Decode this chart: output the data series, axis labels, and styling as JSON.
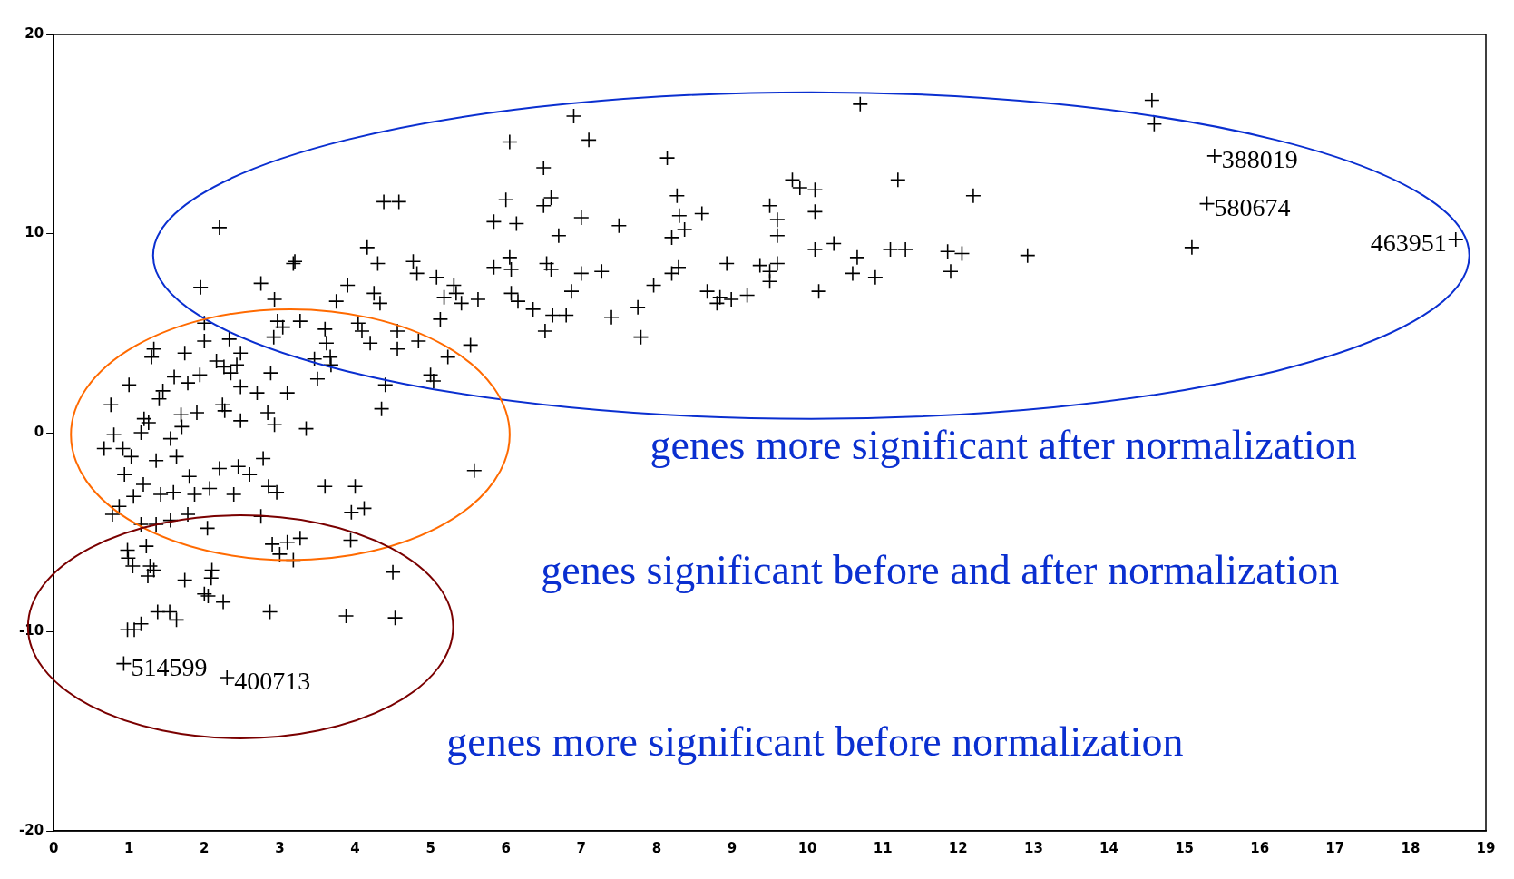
{
  "chart_data": {
    "type": "scatter",
    "color": "#000000",
    "marker": "cross",
    "x": [
      14.57,
      14.6,
      15.4,
      15.3,
      15.1,
      18.6,
      10.7,
      6.9,
      7.1,
      6.05,
      6.5,
      8.14,
      11.2,
      12.2,
      9.8,
      9.9,
      10.1,
      8.27,
      6.0,
      6.6,
      6.5,
      9.5,
      10.1,
      8.6,
      9.6,
      8.3,
      7.0,
      5.84,
      6.14,
      7.5,
      8.37,
      8.2,
      6.7,
      9.6,
      4.38,
      4.58,
      2.2,
      4.16,
      4.3,
      3.2,
      3.18,
      4.77,
      4.82,
      3.9,
      1.95,
      2.75,
      2.93,
      4.25,
      4.33,
      3.75,
      5.08,
      5.31,
      5.34,
      5.18,
      5.13,
      5.53,
      5.41,
      5.63,
      5.84,
      6.05,
      6.07,
      6.07,
      6.16,
      6.36,
      6.54,
      6.6,
      6.52,
      6.62,
      6.8,
      6.87,
      7.0,
      7.27,
      7.4,
      7.75,
      7.79,
      7.96,
      8.2,
      8.29,
      8.67,
      8.8,
      8.84,
      8.99,
      8.93,
      9.2,
      9.37,
      9.5,
      9.5,
      9.6,
      10.1,
      10.35,
      10.15,
      10.66,
      10.6,
      10.9,
      11.1,
      11.3,
      11.86,
      11.9,
      12.05,
      12.92,
      1.33,
      1.3,
      1.0,
      0.76,
      0.67,
      0.8,
      1.2,
      1.16,
      1.26,
      1.4,
      1.45,
      1.6,
      1.78,
      1.94,
      2.0,
      2.0,
      2.16,
      2.26,
      2.35,
      2.43,
      2.48,
      2.33,
      2.7,
      2.88,
      2.97,
      2.92,
      3.04,
      3.27,
      3.6,
      3.68,
      3.5,
      3.1,
      3.35,
      2.84,
      2.93,
      2.48,
      2.27,
      1.9,
      1.7,
      1.55,
      1.63,
      1.36,
      1.03,
      0.92,
      0.94,
      1.06,
      1.19,
      1.42,
      1.59,
      1.8,
      1.87,
      2.07,
      2.2,
      2.45,
      2.39,
      2.6,
      2.78,
      2.85,
      2.96,
      2.75,
      2.9,
      3.1,
      3.27,
      3.0,
      3.18,
      3.6,
      4.0,
      3.95,
      4.12,
      3.94,
      2.04,
      1.78,
      1.55,
      1.36,
      1.16,
      0.78,
      0.87,
      1.23,
      0.98,
      0.99,
      1.05,
      1.28,
      1.25,
      1.33,
      1.74,
      2.1,
      2.09,
      2.0,
      2.05,
      2.25,
      2.87,
      3.88,
      4.53,
      4.5,
      1.38,
      1.54,
      1.63,
      1.16,
      1.07,
      0.98,
      0.93,
      2.3,
      4.35,
      4.4,
      4.04,
      4.09,
      4.2,
      4.56,
      4.56,
      4.84,
      5.0,
      5.04,
      5.23,
      5.58,
      3.46,
      3.67,
      3.62,
      2.24,
      2.48,
      1.74,
      1.69
    ],
    "values": [
      16.7,
      15.5,
      13.9,
      11.5,
      9.3,
      9.7,
      16.5,
      15.9,
      14.7,
      14.6,
      13.3,
      13.8,
      12.7,
      11.9,
      12.7,
      12.3,
      12.2,
      11.9,
      11.7,
      11.8,
      11.4,
      11.4,
      11.1,
      11.0,
      10.7,
      10.9,
      10.8,
      10.6,
      10.5,
      10.4,
      10.2,
      9.8,
      9.9,
      9.9,
      11.6,
      11.6,
      10.3,
      9.3,
      8.5,
      8.6,
      8.5,
      8.6,
      8.0,
      7.4,
      7.3,
      7.5,
      6.7,
      7.0,
      6.5,
      6.6,
      7.8,
      7.4,
      7.0,
      6.8,
      5.7,
      4.4,
      6.5,
      6.7,
      8.3,
      8.8,
      8.2,
      7.0,
      6.6,
      6.2,
      8.5,
      8.2,
      5.1,
      5.9,
      5.9,
      7.1,
      8.0,
      8.1,
      5.8,
      6.3,
      4.8,
      7.4,
      8.0,
      8.3,
      7.1,
      6.5,
      6.8,
      6.7,
      8.5,
      6.9,
      8.4,
      7.6,
      8.1,
      8.5,
      9.2,
      9.5,
      7.1,
      8.8,
      8.0,
      7.8,
      9.2,
      9.2,
      9.1,
      8.1,
      9.0,
      8.9,
      4.2,
      3.8,
      2.4,
      1.4,
      -0.8,
      -0.1,
      0.7,
      0,
      0.5,
      1.7,
      2.1,
      2.8,
      2.5,
      2.9,
      5.5,
      4.6,
      3.6,
      3.3,
      3.0,
      3.4,
      4.0,
      4.7,
      2.0,
      3.0,
      5.6,
      4.8,
      5.3,
      5.6,
      5.2,
      3.4,
      2.7,
      2.0,
      0.2,
      1.0,
      0.4,
      0.6,
      1.1,
      1.0,
      0.3,
      -0.3,
      -1.2,
      -1.4,
      -1.2,
      -0.8,
      -2.1,
      -3.2,
      -2.6,
      -3.1,
      -3.0,
      -2.2,
      -3.1,
      -2.8,
      -1.8,
      -1.7,
      -3.1,
      -2.1,
      -1.3,
      -2.7,
      -3.0,
      -4.2,
      -5.6,
      -5.5,
      -5.3,
      -6.1,
      -6.4,
      -2.7,
      -2.7,
      -4.0,
      -3.8,
      -5.4,
      -4.8,
      -4.1,
      -4.4,
      -4.6,
      -4.6,
      -4.1,
      -3.7,
      -5.7,
      -5.9,
      -6.3,
      -6.7,
      -6.7,
      -7.2,
      -6.9,
      -7.4,
      -6.9,
      -7.3,
      -8.1,
      -8.2,
      -8.5,
      -9.0,
      -9.2,
      -9.3,
      -7.0,
      -9.0,
      -9.0,
      -9.4,
      -9.6,
      -9.9,
      -9.9,
      -11.6,
      -12.3,
      1.2,
      2.4,
      5.5,
      5.1,
      4.5,
      4.2,
      5.1,
      4.6,
      2.9,
      2.6,
      3.8,
      -1.9,
      3.7,
      3.8,
      4.5,
      1.4,
      2.3,
      4.0,
      0.9
    ],
    "xlim": [
      0,
      19
    ],
    "xticks": [
      0,
      1,
      2,
      3,
      4,
      5,
      6,
      7,
      8,
      9,
      10,
      11,
      12,
      13,
      14,
      15,
      16,
      17,
      18,
      19
    ],
    "ylim": [
      -20,
      20
    ],
    "yticks": [
      -20,
      -10,
      0,
      10,
      20
    ],
    "annotations": [
      {
        "text": "388019",
        "x": 15.4,
        "y": 13.9
      },
      {
        "text": "580674",
        "x": 15.3,
        "y": 11.5
      },
      {
        "text": "463951",
        "x": 18.6,
        "y": 9.7
      },
      {
        "text": "514599",
        "x": 0.93,
        "y": -11.6
      },
      {
        "text": "400713",
        "x": 2.3,
        "y": -12.3
      },
      "genes more significant after normalization",
      "genes significant before and after normalization",
      "genes more significant before normalization"
    ]
  }
}
